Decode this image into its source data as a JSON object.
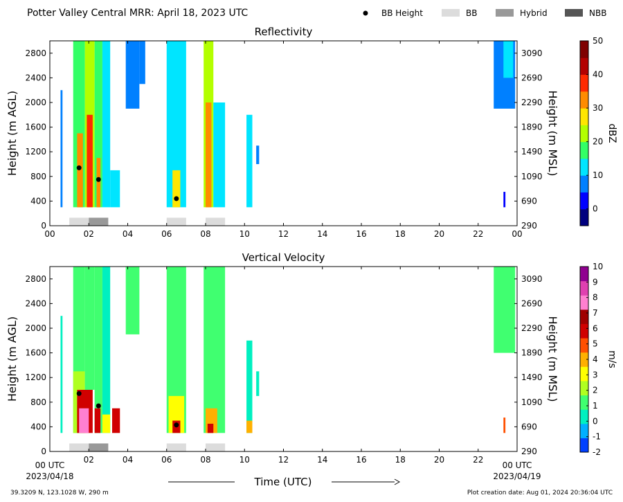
{
  "header": {
    "title": "Potter Valley Central MRR:  April 18, 2023 UTC",
    "legend": [
      {
        "label": "BB Height",
        "kind": "dot",
        "color": "#000000"
      },
      {
        "label": "BB",
        "kind": "box",
        "color": "#dcdcdc"
      },
      {
        "label": "Hybrid",
        "kind": "box",
        "color": "#999999"
      },
      {
        "label": "NBB",
        "kind": "box",
        "color": "#555555"
      }
    ]
  },
  "footer": {
    "location": "39.3209 N, 123.1028 W, 290 m",
    "created": "Plot creation date: Aug 01, 2024 20:36:04 UTC",
    "xlabel": "Time (UTC)",
    "start_tick": "00 UTC",
    "start_date": "2023/04/18",
    "end_tick": "00 UTC",
    "end_date": "2023/04/19"
  },
  "chart_data": [
    {
      "type": "heatmap",
      "title": "Reflectivity",
      "ylabel": "Height (m AGL)",
      "y2label": "Height (m MSL)",
      "cbar_label": "dBZ",
      "xlim": [
        0,
        24
      ],
      "ylim": [
        0,
        3000
      ],
      "x_ticks": [
        "00",
        "02",
        "04",
        "06",
        "08",
        "10",
        "12",
        "14",
        "16",
        "18",
        "20",
        "22",
        "00"
      ],
      "y_ticks": [
        0,
        400,
        800,
        1200,
        1600,
        2000,
        2400,
        2800
      ],
      "y2_ticks": [
        290,
        690,
        1090,
        1490,
        1890,
        2290,
        2690,
        3090
      ],
      "cbar_range": [
        -5,
        50
      ],
      "cbar_ticks": [
        0,
        10,
        20,
        30,
        40,
        50
      ],
      "colormap": [
        "#00007f",
        "#0000ff",
        "#0080ff",
        "#00e5ff",
        "#33ff66",
        "#b3ff00",
        "#ffe600",
        "#ff8c00",
        "#ff2a00",
        "#b30000",
        "#7f0000"
      ],
      "bb_height_points": [
        {
          "time": 1.5,
          "height": 940
        },
        {
          "time": 2.5,
          "height": 750
        },
        {
          "time": 6.5,
          "height": 440
        }
      ],
      "bb_segments": [
        {
          "start": 1.0,
          "end": 2.0,
          "type": "BB"
        },
        {
          "start": 2.0,
          "end": 3.0,
          "type": "Hybrid"
        },
        {
          "start": 6.0,
          "end": 7.0,
          "type": "BB"
        },
        {
          "start": 8.0,
          "end": 9.0,
          "type": "BB"
        }
      ],
      "cells": [
        {
          "t0": 0.55,
          "t1": 0.65,
          "h0": 300,
          "h1": 2200,
          "v": 8
        },
        {
          "t0": 1.2,
          "t1": 1.8,
          "h0": 300,
          "h1": 3000,
          "v": 18
        },
        {
          "t0": 1.4,
          "t1": 1.7,
          "h0": 300,
          "h1": 1500,
          "v": 33
        },
        {
          "t0": 1.8,
          "t1": 2.3,
          "h0": 300,
          "h1": 3000,
          "v": 20
        },
        {
          "t0": 1.9,
          "t1": 2.2,
          "h0": 300,
          "h1": 1800,
          "v": 38
        },
        {
          "t0": 2.3,
          "t1": 2.7,
          "h0": 300,
          "h1": 3000,
          "v": 15
        },
        {
          "t0": 2.4,
          "t1": 2.6,
          "h0": 300,
          "h1": 1100,
          "v": 30
        },
        {
          "t0": 2.7,
          "t1": 3.1,
          "h0": 300,
          "h1": 3000,
          "v": 12
        },
        {
          "t0": 3.1,
          "t1": 3.6,
          "h0": 300,
          "h1": 900,
          "v": 10
        },
        {
          "t0": 3.9,
          "t1": 4.6,
          "h0": 1900,
          "h1": 3000,
          "v": 8
        },
        {
          "t0": 4.6,
          "t1": 4.9,
          "h0": 2300,
          "h1": 3000,
          "v": 6
        },
        {
          "t0": 6.0,
          "t1": 7.0,
          "h0": 300,
          "h1": 3000,
          "v": 12
        },
        {
          "t0": 6.3,
          "t1": 6.7,
          "h0": 300,
          "h1": 900,
          "v": 27
        },
        {
          "t0": 7.9,
          "t1": 8.4,
          "h0": 300,
          "h1": 3000,
          "v": 22
        },
        {
          "t0": 8.0,
          "t1": 8.3,
          "h0": 300,
          "h1": 2000,
          "v": 32
        },
        {
          "t0": 8.4,
          "t1": 9.0,
          "h0": 300,
          "h1": 2000,
          "v": 12
        },
        {
          "t0": 10.1,
          "t1": 10.4,
          "h0": 300,
          "h1": 1800,
          "v": 12
        },
        {
          "t0": 10.6,
          "t1": 10.75,
          "h0": 1000,
          "h1": 1300,
          "v": 6
        },
        {
          "t0": 22.8,
          "t1": 23.9,
          "h0": 1900,
          "h1": 3000,
          "v": 6
        },
        {
          "t0": 23.3,
          "t1": 23.8,
          "h0": 2400,
          "h1": 3000,
          "v": 12
        },
        {
          "t0": 23.3,
          "t1": 23.4,
          "h0": 300,
          "h1": 550,
          "v": 3
        }
      ]
    },
    {
      "type": "heatmap",
      "title": "Vertical Velocity",
      "ylabel": "Height (m AGL)",
      "y2label": "Height (m MSL)",
      "cbar_label": "m/s",
      "xlim": [
        0,
        24
      ],
      "ylim": [
        0,
        3000
      ],
      "x_ticks": [
        "",
        "02",
        "04",
        "06",
        "08",
        "10",
        "12",
        "14",
        "16",
        "18",
        "20",
        "22",
        ""
      ],
      "y_ticks": [
        0,
        400,
        800,
        1200,
        1600,
        2000,
        2400,
        2800
      ],
      "y2_ticks": [
        290,
        690,
        1090,
        1490,
        1890,
        2290,
        2690,
        3090
      ],
      "cbar_range": [
        -2,
        10
      ],
      "cbar_ticks": [
        -2,
        -1,
        0,
        1,
        2,
        3,
        4,
        5,
        6,
        7,
        8,
        9,
        10
      ],
      "colormap": [
        "#0040ff",
        "#00b0ff",
        "#00f0c0",
        "#40ff70",
        "#b0ff20",
        "#ffff00",
        "#ffb000",
        "#ff5000",
        "#d00000",
        "#a00000",
        "#ff80d0",
        "#e040b0",
        "#900090"
      ],
      "bb_height_points": [
        {
          "time": 1.5,
          "height": 940
        },
        {
          "time": 2.5,
          "height": 740
        },
        {
          "time": 6.5,
          "height": 430
        }
      ],
      "bb_segments": [
        {
          "start": 1.0,
          "end": 2.0,
          "type": "BB"
        },
        {
          "start": 2.0,
          "end": 3.0,
          "type": "Hybrid"
        },
        {
          "start": 6.0,
          "end": 7.0,
          "type": "BB"
        },
        {
          "start": 8.0,
          "end": 9.0,
          "type": "BB"
        }
      ],
      "cells": [
        {
          "t0": 0.55,
          "t1": 0.65,
          "h0": 300,
          "h1": 2200,
          "v": 0.5
        },
        {
          "t0": 1.2,
          "t1": 1.8,
          "h0": 300,
          "h1": 3000,
          "v": 0.8
        },
        {
          "t0": 1.2,
          "t1": 1.8,
          "h0": 300,
          "h1": 1300,
          "v": 2.5
        },
        {
          "t0": 1.4,
          "t1": 2.2,
          "h0": 300,
          "h1": 1000,
          "v": 5.5
        },
        {
          "t0": 1.5,
          "t1": 2.0,
          "h0": 300,
          "h1": 700,
          "v": 8
        },
        {
          "t0": 1.8,
          "t1": 2.3,
          "h0": 1000,
          "h1": 3000,
          "v": 1.2
        },
        {
          "t0": 2.3,
          "t1": 2.7,
          "h0": 300,
          "h1": 3000,
          "v": 1.5
        },
        {
          "t0": 2.3,
          "t1": 2.6,
          "h0": 300,
          "h1": 700,
          "v": 6
        },
        {
          "t0": 2.7,
          "t1": 3.1,
          "h0": 300,
          "h1": 3000,
          "v": 0.5
        },
        {
          "t0": 2.7,
          "t1": 3.1,
          "h0": 300,
          "h1": 600,
          "v": 3
        },
        {
          "t0": 3.2,
          "t1": 3.6,
          "h0": 300,
          "h1": 700,
          "v": 5.5
        },
        {
          "t0": 3.9,
          "t1": 4.6,
          "h0": 1900,
          "h1": 3000,
          "v": 0.8
        },
        {
          "t0": 6.0,
          "t1": 7.0,
          "h0": 300,
          "h1": 3000,
          "v": 1.0
        },
        {
          "t0": 6.1,
          "t1": 6.9,
          "h0": 300,
          "h1": 900,
          "v": 3.5
        },
        {
          "t0": 6.3,
          "t1": 6.7,
          "h0": 300,
          "h1": 500,
          "v": 6
        },
        {
          "t0": 7.9,
          "t1": 9.0,
          "h0": 300,
          "h1": 3000,
          "v": 0.8
        },
        {
          "t0": 8.0,
          "t1": 8.6,
          "h0": 300,
          "h1": 700,
          "v": 4
        },
        {
          "t0": 8.1,
          "t1": 8.4,
          "h0": 300,
          "h1": 450,
          "v": 6
        },
        {
          "t0": 10.1,
          "t1": 10.4,
          "h0": 300,
          "h1": 1800,
          "v": 0.7
        },
        {
          "t0": 10.1,
          "t1": 10.4,
          "h0": 300,
          "h1": 500,
          "v": 4
        },
        {
          "t0": 10.6,
          "t1": 10.75,
          "h0": 900,
          "h1": 1300,
          "v": 0.5
        },
        {
          "t0": 22.8,
          "t1": 23.9,
          "h0": 1600,
          "h1": 3000,
          "v": 0.8
        },
        {
          "t0": 23.3,
          "t1": 23.4,
          "h0": 300,
          "h1": 550,
          "v": 5
        }
      ]
    }
  ]
}
